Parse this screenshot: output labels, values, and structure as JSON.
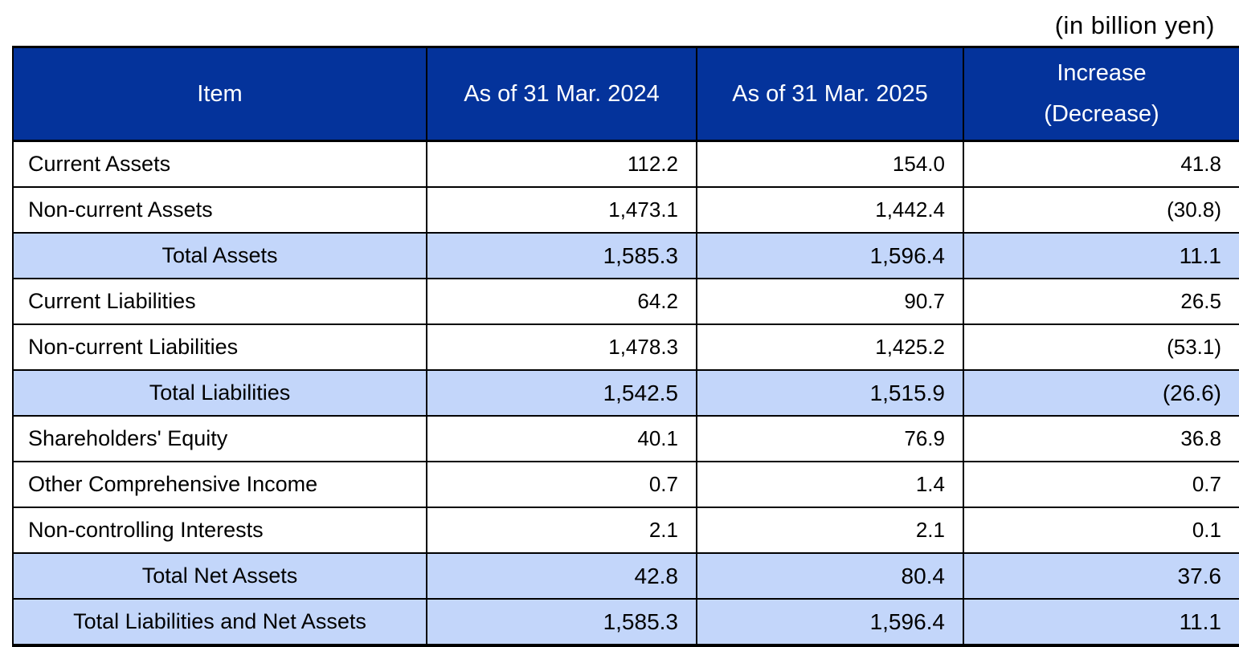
{
  "page": {
    "unit_note": "(in billion yen)"
  },
  "colors": {
    "header_bg": "#04339B",
    "header_text": "#FFFFFF",
    "total_row_bg": "#C3D6FA",
    "row_bg": "#FFFFFF",
    "border": "#000000",
    "body_text": "#000000"
  },
  "table": {
    "header": {
      "item": "Item",
      "col_2024": "As of 31 Mar. 2024",
      "col_2025": "As of 31 Mar. 2025",
      "change_line1": "Increase",
      "change_line2": "(Decrease)"
    },
    "rows": [
      {
        "label": "Current Assets",
        "v2024": "112.2",
        "v2025": "154.0",
        "change": "41.8",
        "is_total": false
      },
      {
        "label": "Non-current Assets",
        "v2024": "1,473.1",
        "v2025": "1,442.4",
        "change": "(30.8)",
        "is_total": false
      },
      {
        "label": "Total Assets",
        "v2024": "1,585.3",
        "v2025": "1,596.4",
        "change": "11.1",
        "is_total": true
      },
      {
        "label": "Current Liabilities",
        "v2024": "64.2",
        "v2025": "90.7",
        "change": "26.5",
        "is_total": false
      },
      {
        "label": "Non-current Liabilities",
        "v2024": "1,478.3",
        "v2025": "1,425.2",
        "change": "(53.1)",
        "is_total": false
      },
      {
        "label": "Total Liabilities",
        "v2024": "1,542.5",
        "v2025": "1,515.9",
        "change": "(26.6)",
        "is_total": true
      },
      {
        "label": "Shareholders' Equity",
        "v2024": "40.1",
        "v2025": "76.9",
        "change": "36.8",
        "is_total": false
      },
      {
        "label": "Other Comprehensive Income",
        "v2024": "0.7",
        "v2025": "1.4",
        "change": "0.7",
        "is_total": false
      },
      {
        "label": "Non-controlling Interests",
        "v2024": "2.1",
        "v2025": "2.1",
        "change": "0.1",
        "is_total": false
      },
      {
        "label": "Total Net Assets",
        "v2024": "42.8",
        "v2025": "80.4",
        "change": "37.6",
        "is_total": true
      },
      {
        "label": "Total Liabilities and Net Assets",
        "v2024": "1,585.3",
        "v2025": "1,596.4",
        "change": "11.1",
        "is_total": true
      }
    ]
  },
  "chart_data": {
    "type": "table",
    "columns": [
      "Item",
      "As of 31 Mar. 2024",
      "As of 31 Mar. 2025",
      "Increase (Decrease)"
    ],
    "rows": [
      [
        "Current Assets",
        112.2,
        154.0,
        41.8
      ],
      [
        "Non-current Assets",
        1473.1,
        1442.4,
        -30.8
      ],
      [
        "Total Assets",
        1585.3,
        1596.4,
        11.1
      ],
      [
        "Current Liabilities",
        64.2,
        90.7,
        26.5
      ],
      [
        "Non-current Liabilities",
        1478.3,
        1425.2,
        -53.1
      ],
      [
        "Total Liabilities",
        1542.5,
        1515.9,
        -26.6
      ],
      [
        "Shareholders' Equity",
        40.1,
        76.9,
        36.8
      ],
      [
        "Other Comprehensive Income",
        0.7,
        1.4,
        0.7
      ],
      [
        "Non-controlling Interests",
        2.1,
        2.1,
        0.1
      ],
      [
        "Total Net Assets",
        42.8,
        80.4,
        37.6
      ],
      [
        "Total Liabilities and Net Assets",
        1585.3,
        1596.4,
        11.1
      ]
    ],
    "unit": "billion yen"
  }
}
